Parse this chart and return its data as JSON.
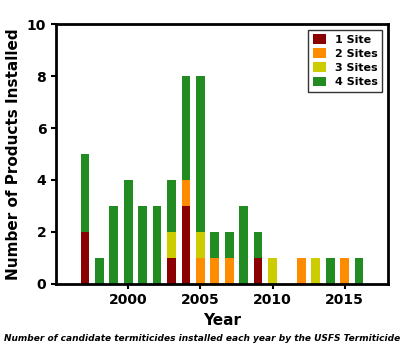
{
  "years": [
    1997,
    1998,
    1999,
    2000,
    2001,
    2002,
    2003,
    2004,
    2005,
    2006,
    2007,
    2008,
    2009,
    2010,
    2012,
    2013,
    2014,
    2015,
    2016
  ],
  "site1": [
    2,
    0,
    0,
    0,
    0,
    0,
    1,
    3,
    0,
    0,
    0,
    0,
    1,
    0,
    0,
    0,
    0,
    0,
    0
  ],
  "site2": [
    0,
    0,
    0,
    0,
    0,
    0,
    0,
    1,
    1,
    1,
    1,
    0,
    0,
    0,
    1,
    0,
    0,
    1,
    0
  ],
  "site3": [
    0,
    0,
    0,
    0,
    0,
    0,
    1,
    0,
    1,
    0,
    0,
    0,
    0,
    1,
    0,
    1,
    0,
    0,
    0
  ],
  "site4": [
    3,
    1,
    3,
    4,
    3,
    3,
    2,
    4,
    6,
    1,
    1,
    3,
    1,
    0,
    0,
    0,
    1,
    0,
    1
  ],
  "color_site1": "#8B0000",
  "color_site2": "#FF8C00",
  "color_site3": "#CCCC00",
  "color_site4": "#228B22",
  "ylabel": "Number of Products Installed",
  "xlabel": "Year",
  "ylim": [
    0,
    10
  ],
  "yticks": [
    0,
    2,
    4,
    6,
    8,
    10
  ],
  "xticks": [
    2000,
    2005,
    2010,
    2015
  ],
  "legend_labels": [
    "1 Site",
    "2 Sites",
    "3 Sites",
    "4 Sites"
  ],
  "caption": "Number of candidate termiticides installed each year by the USFS Termiticide Testing Program",
  "bar_width": 0.6,
  "xlim": [
    1995.0,
    2018.0
  ],
  "tick_fontsize": 10,
  "label_fontsize": 11,
  "legend_fontsize": 8
}
